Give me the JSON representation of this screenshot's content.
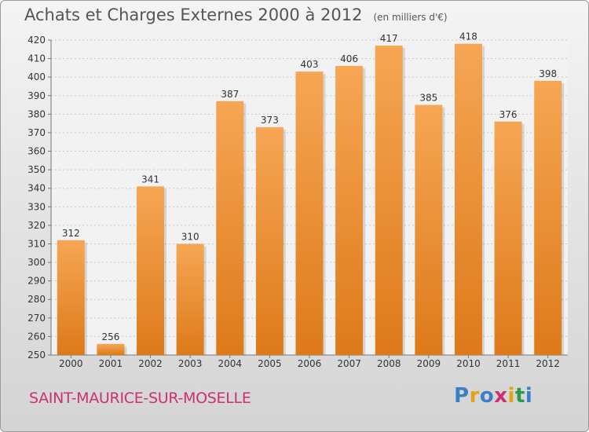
{
  "chart_data": {
    "type": "bar",
    "title": "Achats et Charges Externes 2000 à 2012",
    "unit": "(en milliers d'€)",
    "categories": [
      "2000",
      "2001",
      "2002",
      "2003",
      "2004",
      "2005",
      "2006",
      "2007",
      "2008",
      "2009",
      "2010",
      "2011",
      "2012"
    ],
    "values": [
      312,
      256,
      341,
      310,
      387,
      373,
      403,
      406,
      417,
      385,
      418,
      376,
      398
    ],
    "ylim": [
      250,
      420
    ],
    "yticks": [
      250,
      260,
      270,
      280,
      290,
      300,
      310,
      320,
      330,
      340,
      350,
      360,
      370,
      380,
      390,
      400,
      410,
      420
    ],
    "grid": true,
    "bar_color_top": "#f6a654",
    "bar_color_bottom": "#dd7a1a"
  },
  "footer": {
    "city": "SAINT-MAURICE-SUR-MOSELLE",
    "logo": "Proxiti"
  }
}
